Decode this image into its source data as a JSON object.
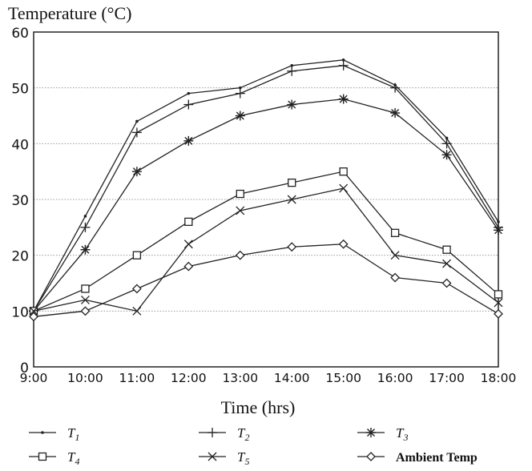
{
  "chart_data": {
    "type": "line",
    "ylabel": "Temperature (°C)",
    "xlabel": "Time (hrs)",
    "categories": [
      "9:00",
      "10:00",
      "11:00",
      "12:00",
      "13:00",
      "14:00",
      "15:00",
      "16:00",
      "17:00",
      "18:00"
    ],
    "ylim": [
      0,
      60
    ],
    "yticks": [
      "0",
      "10",
      "20",
      "30",
      "40",
      "50",
      "60"
    ],
    "grid": true,
    "legend_position": "bottom",
    "series": [
      {
        "name": "T",
        "sub": "1",
        "marker": "dot",
        "values": [
          10,
          27,
          44,
          49,
          50,
          54,
          55,
          50.5,
          41,
          26
        ]
      },
      {
        "name": "T",
        "sub": "2",
        "marker": "plus",
        "values": [
          10,
          25,
          42,
          47,
          49,
          53,
          54,
          50,
          40,
          25
        ]
      },
      {
        "name": "T",
        "sub": "3",
        "marker": "asterisk",
        "values": [
          10,
          21,
          35,
          40.5,
          45,
          47,
          48,
          45.5,
          38,
          24.5
        ]
      },
      {
        "name": "T",
        "sub": "4",
        "marker": "square",
        "values": [
          10,
          14,
          20,
          26,
          31,
          33,
          35,
          24,
          21,
          13
        ]
      },
      {
        "name": "T",
        "sub": "5",
        "marker": "x",
        "values": [
          10,
          12,
          10,
          22,
          28,
          30,
          32,
          20,
          18.5,
          11.5
        ]
      },
      {
        "name": "Ambient Temp",
        "sub": "",
        "marker": "diamond",
        "values": [
          9,
          10,
          14,
          18,
          20,
          21.5,
          22,
          16,
          15,
          9.5
        ]
      }
    ]
  }
}
